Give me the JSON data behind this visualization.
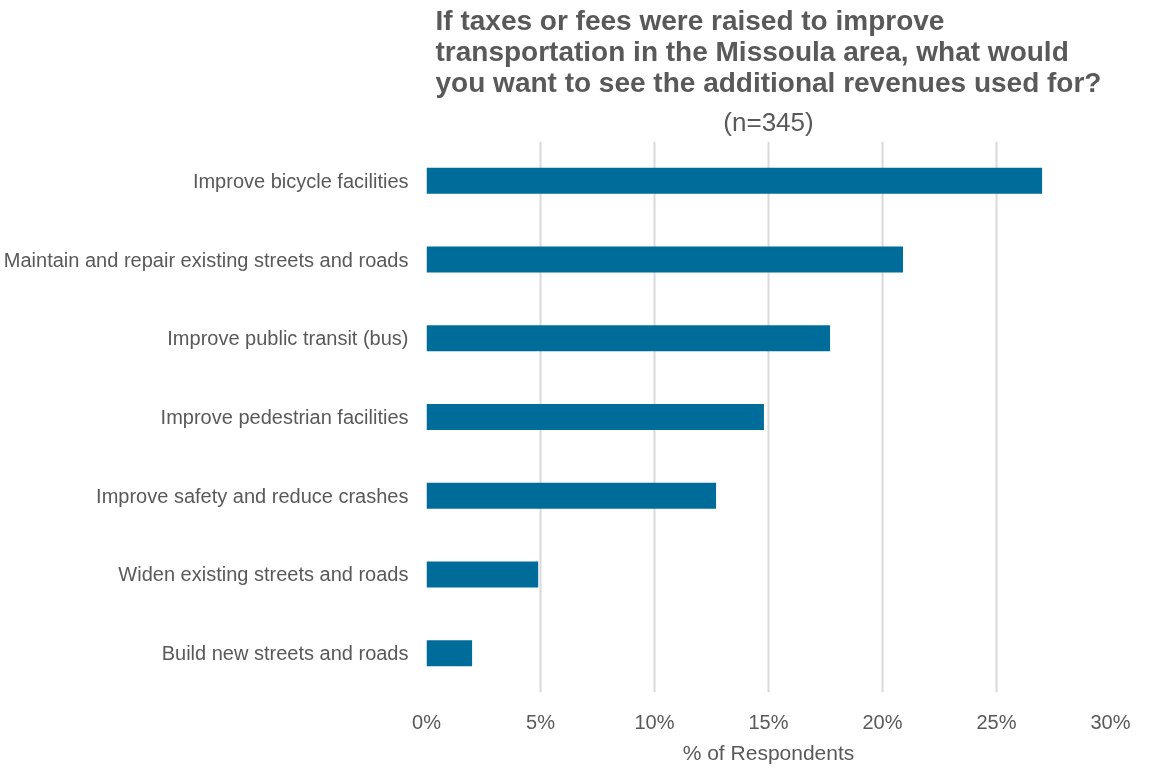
{
  "chart_data": {
    "type": "bar",
    "orientation": "horizontal",
    "title": "If taxes or fees were raised to improve\ntransportation in the Missoula area, what would\nyou want to see the additional revenues used for?",
    "subtitle": "(n=345)",
    "xlabel": "% of Respondents",
    "categories": [
      "Improve bicycle facilities",
      "Maintain and repair existing streets and roads",
      "Improve public transit (bus)",
      "Improve pedestrian facilities",
      "Improve safety and reduce crashes",
      "Widen existing streets and roads",
      "Build new streets and roads"
    ],
    "values": [
      27.0,
      20.9,
      17.7,
      14.8,
      12.7,
      4.9,
      2.0
    ],
    "color": "#006c9a",
    "xlim": [
      0,
      30
    ],
    "xticks": [
      {
        "value": 0,
        "label": "0%"
      },
      {
        "value": 5,
        "label": "5%"
      },
      {
        "value": 10,
        "label": "10%"
      },
      {
        "value": 15,
        "label": "15%"
      },
      {
        "value": 20,
        "label": "20%"
      },
      {
        "value": 25,
        "label": "25%"
      },
      {
        "value": 30,
        "label": "30%"
      }
    ],
    "grid": "x"
  }
}
